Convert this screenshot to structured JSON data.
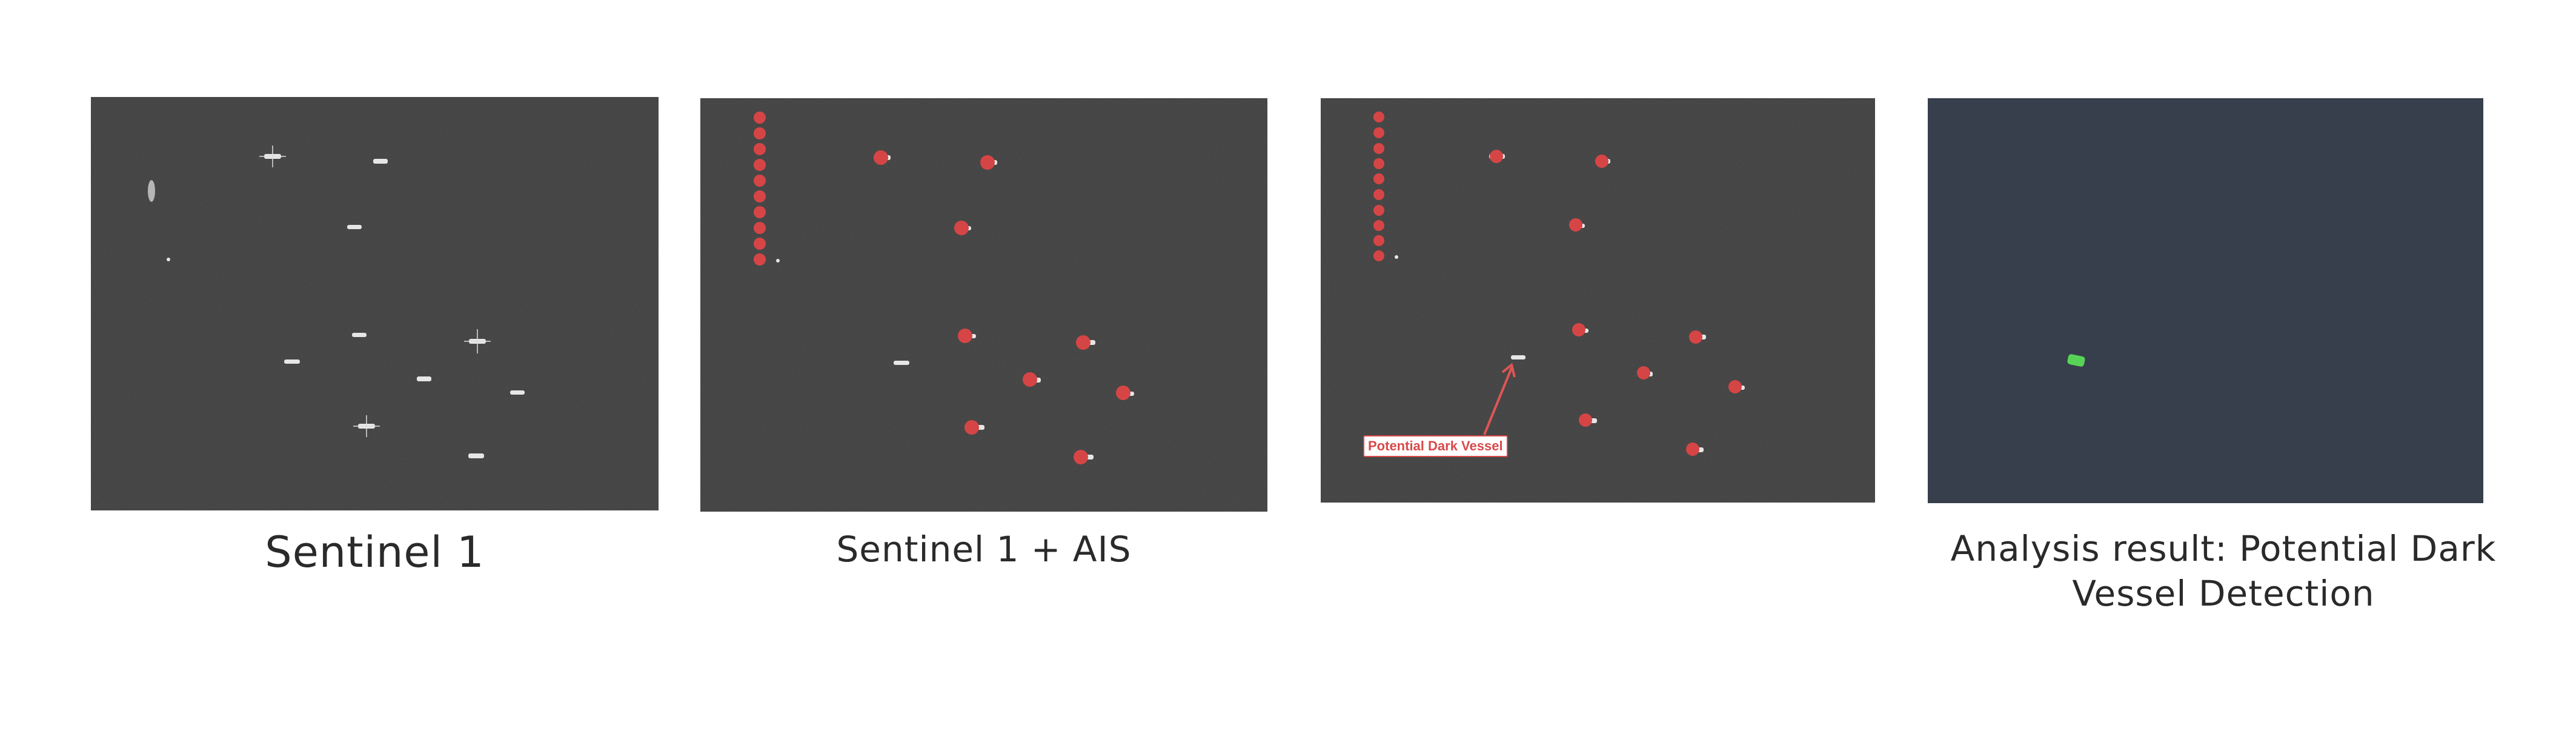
{
  "panels": [
    {
      "id": "sentinel-1",
      "caption": "Sentinel 1"
    },
    {
      "id": "sentinel-1-ais",
      "caption": "Sentinel 1 + AIS"
    },
    {
      "id": "annotated",
      "caption": "",
      "annotation": "Potential Dark Vessel"
    },
    {
      "id": "analysis-result",
      "caption": "Analysis result: Potential Dark Vessel Detection"
    }
  ],
  "colors": {
    "sar_background": "#3a3a3a",
    "ais_marker": "#d64545",
    "detection": "#57d457",
    "result_background": "#373f4c"
  }
}
